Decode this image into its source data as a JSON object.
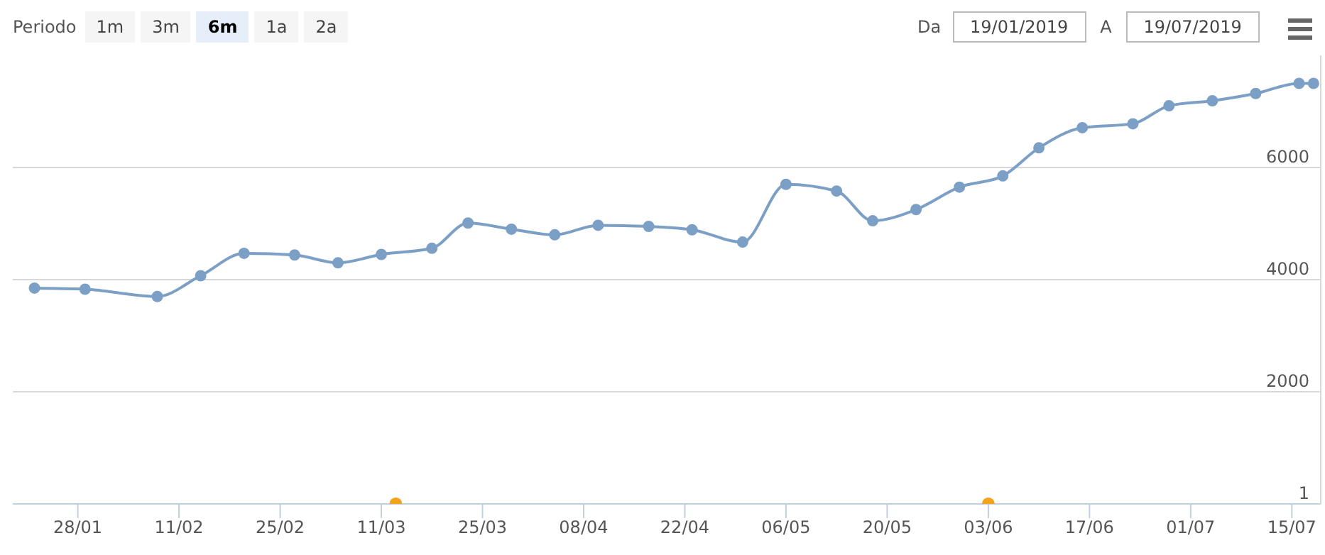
{
  "chart_data": {
    "type": "line",
    "x": [
      "2019-01-22",
      "2019-01-29",
      "2019-02-08",
      "2019-02-14",
      "2019-02-20",
      "2019-02-27",
      "2019-03-05",
      "2019-03-11",
      "2019-03-18",
      "2019-03-23",
      "2019-03-29",
      "2019-04-04",
      "2019-04-10",
      "2019-04-17",
      "2019-04-23",
      "2019-04-30",
      "2019-05-06",
      "2019-05-13",
      "2019-05-18",
      "2019-05-24",
      "2019-05-30",
      "2019-06-05",
      "2019-06-10",
      "2019-06-16",
      "2019-06-23",
      "2019-06-28",
      "2019-07-04",
      "2019-07-10",
      "2019-07-16",
      "2019-07-18"
    ],
    "series": [
      {
        "color": "#7c9fc6",
        "values": [
          3850,
          3830,
          3700,
          4070,
          4470,
          4440,
          4300,
          4450,
          4560,
          5010,
          4900,
          4800,
          4970,
          4950,
          4890,
          4670,
          5700,
          5580,
          5050,
          5250,
          5650,
          5850,
          6350,
          6710,
          6780,
          7100,
          7190,
          7320,
          7500,
          7500
        ]
      },
      {
        "type": "scatter",
        "color": "#f7a21b",
        "x": [
          "2019-03-13",
          "2019-06-03"
        ],
        "values": [
          1,
          1
        ]
      }
    ],
    "xlim": [
      "2019-01-19",
      "2019-07-19"
    ],
    "xticks": [
      {
        "value": "2019-01-28",
        "label": "28/01"
      },
      {
        "value": "2019-02-11",
        "label": "11/02"
      },
      {
        "value": "2019-02-25",
        "label": "25/02"
      },
      {
        "value": "2019-03-11",
        "label": "11/03"
      },
      {
        "value": "2019-03-25",
        "label": "25/03"
      },
      {
        "value": "2019-04-08",
        "label": "08/04"
      },
      {
        "value": "2019-04-22",
        "label": "22/04"
      },
      {
        "value": "2019-05-06",
        "label": "06/05"
      },
      {
        "value": "2019-05-20",
        "label": "20/05"
      },
      {
        "value": "2019-06-03",
        "label": "03/06"
      },
      {
        "value": "2019-06-17",
        "label": "17/06"
      },
      {
        "value": "2019-07-01",
        "label": "01/07"
      },
      {
        "value": "2019-07-15",
        "label": "15/07"
      }
    ],
    "ylim": [
      1,
      8000
    ],
    "yticks": [
      1,
      2000,
      4000,
      6000
    ],
    "grid": "y",
    "marker": "circle",
    "line_style": "solid",
    "annotations": [
      "Periodo",
      "1m",
      "3m",
      "6m",
      "1a",
      "2a",
      "Da",
      "19/01/2019",
      "A",
      "19/07/2019"
    ]
  }
}
